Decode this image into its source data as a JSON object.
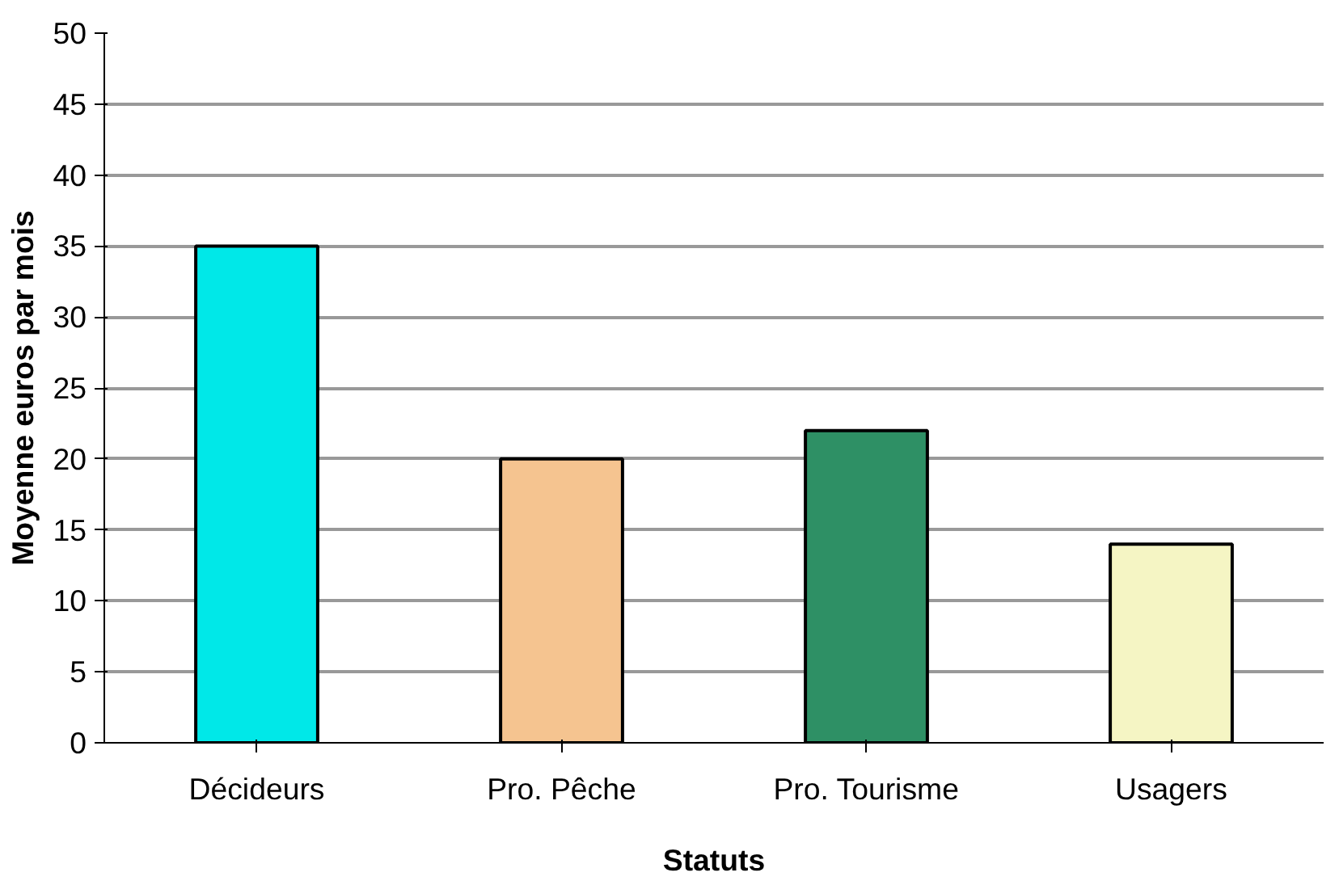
{
  "chart_data": {
    "type": "bar",
    "xlabel": "Statuts",
    "ylabel": "Moyenne euros par mois",
    "categories": [
      "Décideurs",
      "Pro. Pêche",
      "Pro. Tourisme",
      "Usagers"
    ],
    "values": [
      35,
      20,
      22,
      14
    ],
    "colors": [
      "#00e8e8",
      "#f5c490",
      "#2e9065",
      "#f5f5c4"
    ],
    "ylim": [
      0,
      50
    ],
    "yticks": [
      0,
      5,
      10,
      15,
      20,
      25,
      30,
      35,
      40,
      45,
      50
    ],
    "grid": "y"
  }
}
